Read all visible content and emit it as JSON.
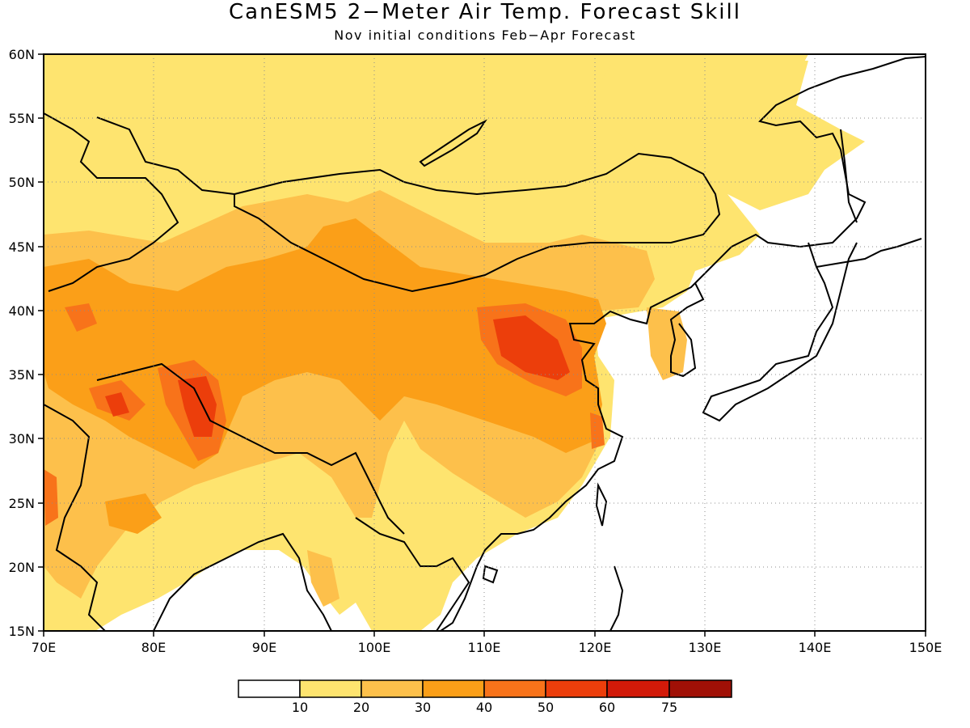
{
  "title": "CanESM5 2−Meter Air Temp. Forecast Skill",
  "subtitle": "Nov initial conditions  Feb−Apr Forecast",
  "map": {
    "lon_range": [
      70,
      150
    ],
    "lat_range": [
      15,
      60
    ],
    "lon_ticks": [
      "70E",
      "80E",
      "90E",
      "100E",
      "110E",
      "120E",
      "130E",
      "140E",
      "150E"
    ],
    "lat_ticks": [
      "15N",
      "20N",
      "25N",
      "30N",
      "35N",
      "40N",
      "45N",
      "50N",
      "55N",
      "60N"
    ],
    "gridlines": "dotted",
    "coastline_color": "#000000"
  },
  "legend": {
    "labels": [
      "10",
      "20",
      "30",
      "40",
      "50",
      "60",
      "75"
    ],
    "colors": [
      "#ffffff",
      "#fee46f",
      "#fdc04b",
      "#fb9f18",
      "#f8731a",
      "#ec3e0b",
      "#d21a09",
      "#a01006"
    ],
    "placement": "bottom"
  },
  "chart_data": {
    "type": "heatmap",
    "title": "CanESM5 2−Meter Air Temp. Forecast Skill",
    "subtitle": "Nov initial conditions  Feb−Apr Forecast",
    "x_range": [
      70,
      150
    ],
    "y_range": [
      15,
      60
    ],
    "contour_levels": [
      10,
      20,
      30,
      40,
      50,
      60,
      75
    ],
    "regions": [
      {
        "level": 10,
        "lon": [
          70,
          150
        ],
        "lat": [
          15,
          60
        ]
      },
      {
        "level": 20,
        "lon": [
          70,
          92
        ],
        "lat": [
          25,
          47
        ]
      },
      {
        "level": 20,
        "lon": [
          95,
          128
        ],
        "lat": [
          33,
          50
        ]
      },
      {
        "level": 30,
        "lon": [
          73,
          88
        ],
        "lat": [
          28,
          42
        ]
      },
      {
        "level": 30,
        "lon": [
          98,
          122
        ],
        "lat": [
          30,
          42
        ]
      },
      {
        "level": 40,
        "lon": [
          80,
          86
        ],
        "lat": [
          29,
          36
        ]
      },
      {
        "level": 40,
        "lon": [
          108,
          120
        ],
        "lat": [
          33,
          40
        ]
      },
      {
        "level": 50,
        "lon": [
          82,
          85
        ],
        "lat": [
          30,
          34
        ]
      },
      {
        "level": 50,
        "lon": [
          112,
          118
        ],
        "lat": [
          34,
          38
        ]
      }
    ]
  }
}
